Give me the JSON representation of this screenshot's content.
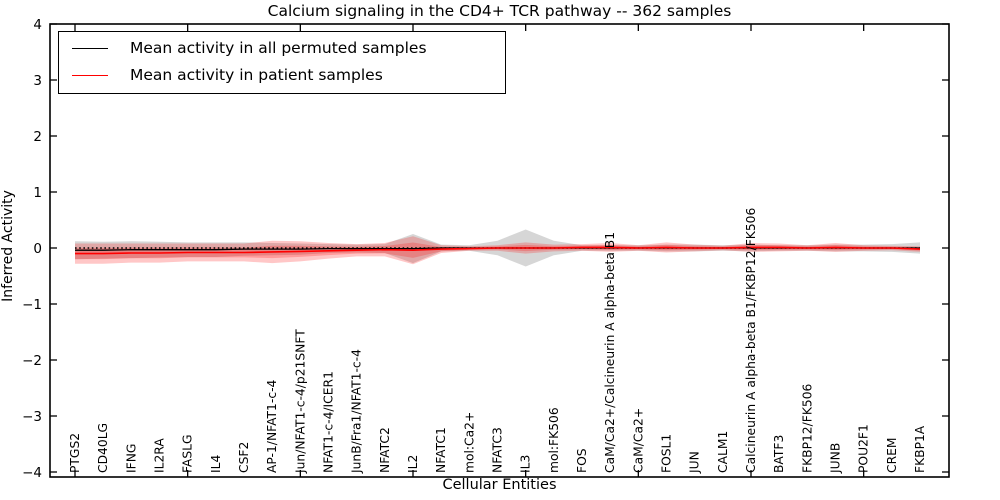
{
  "figure": {
    "title": "Calcium signaling in the CD4+ TCR pathway -- 362 samples",
    "xlabel": "Cellular Entities",
    "ylabel": "Inferred Activity"
  },
  "legend": {
    "entries": [
      {
        "label": "Mean activity in all permuted samples",
        "color": "#000000"
      },
      {
        "label": "Mean activity in patient samples",
        "color": "#ff0000"
      }
    ]
  },
  "colors": {
    "permuted_line": "#000000",
    "patient_line": "#ff0000",
    "permuted_band": "rgba(128,128,128,0.32)",
    "patient_band": "rgba(255,0,0,0.22)",
    "frame": "#000000"
  },
  "chart_data": {
    "type": "line",
    "title": "Calcium signaling in the CD4+ TCR pathway -- 362 samples",
    "xlabel": "Cellular Entities",
    "ylabel": "Inferred Activity",
    "ylim": [
      -4,
      4
    ],
    "yticks": [
      -4,
      -3,
      -2,
      -1,
      0,
      1,
      2,
      3,
      4
    ],
    "x_tick_step": 4,
    "grid": false,
    "legend_position": "upper left",
    "zero_reference_line": {
      "y": 0,
      "style": "dotted",
      "color": "#000000"
    },
    "categories": [
      "PTGS2",
      "CD40LG",
      "IFNG",
      "IL2RA",
      "FASLG",
      "IL4",
      "CSF2",
      "AP-1/NFAT1-c-4",
      "Jun/NFAT1-c-4/p21SNFT",
      "NFAT1-c-4/ICER1",
      "JunB/Fra1/NFAT1-c-4",
      "NFATC2",
      "IL2",
      "NFATC1",
      "mol:Ca2+",
      "NFATC3",
      "IL3",
      "mol:FK506",
      "FOS",
      "CaM/Ca2+/Calcineurin A alpha-beta B1",
      "CaM/Ca2+",
      "FOSL1",
      "JUN",
      "CALM1",
      "Calcineurin A alpha-beta B1/FKBP12/FK506",
      "BATF3",
      "FKBP12/FK506",
      "JUNB",
      "POU2F1",
      "CREM",
      "FKBP1A"
    ],
    "series": [
      {
        "name": "Mean activity in all permuted samples",
        "color": "#000000",
        "values": [
          -0.04,
          -0.04,
          -0.03,
          -0.03,
          -0.03,
          -0.03,
          -0.02,
          -0.02,
          -0.02,
          -0.01,
          -0.01,
          -0.01,
          -0.01,
          0,
          0,
          0,
          0,
          0,
          0,
          0,
          0,
          0,
          0,
          0,
          0,
          0,
          0,
          0,
          0,
          0,
          0
        ],
        "std": [
          0.16,
          0.15,
          0.15,
          0.14,
          0.13,
          0.13,
          0.12,
          0.11,
          0.1,
          0.08,
          0.07,
          0.08,
          0.26,
          0.06,
          0.05,
          0.13,
          0.33,
          0.13,
          0.05,
          0.05,
          0.05,
          0.06,
          0.06,
          0.05,
          0.06,
          0.05,
          0.05,
          0.06,
          0.06,
          0.07,
          0.1
        ]
      },
      {
        "name": "Mean activity in patient samples",
        "color": "#ff0000",
        "values": [
          -0.1,
          -0.1,
          -0.09,
          -0.09,
          -0.08,
          -0.08,
          -0.08,
          -0.07,
          -0.06,
          -0.05,
          -0.04,
          -0.03,
          -0.04,
          -0.02,
          -0.01,
          0,
          0,
          0,
          0.01,
          0.01,
          0,
          0.01,
          0,
          0,
          0.01,
          0.01,
          0,
          0.01,
          0,
          0,
          -0.02
        ],
        "std": [
          0.18,
          0.18,
          0.17,
          0.17,
          0.16,
          0.16,
          0.16,
          0.2,
          0.18,
          0.14,
          0.11,
          0.12,
          0.25,
          0.07,
          0.04,
          0.05,
          0.1,
          0.06,
          0.06,
          0.08,
          0.05,
          0.09,
          0.06,
          0.04,
          0.08,
          0.07,
          0.05,
          0.08,
          0.05,
          0.04,
          0.05
        ]
      }
    ]
  }
}
